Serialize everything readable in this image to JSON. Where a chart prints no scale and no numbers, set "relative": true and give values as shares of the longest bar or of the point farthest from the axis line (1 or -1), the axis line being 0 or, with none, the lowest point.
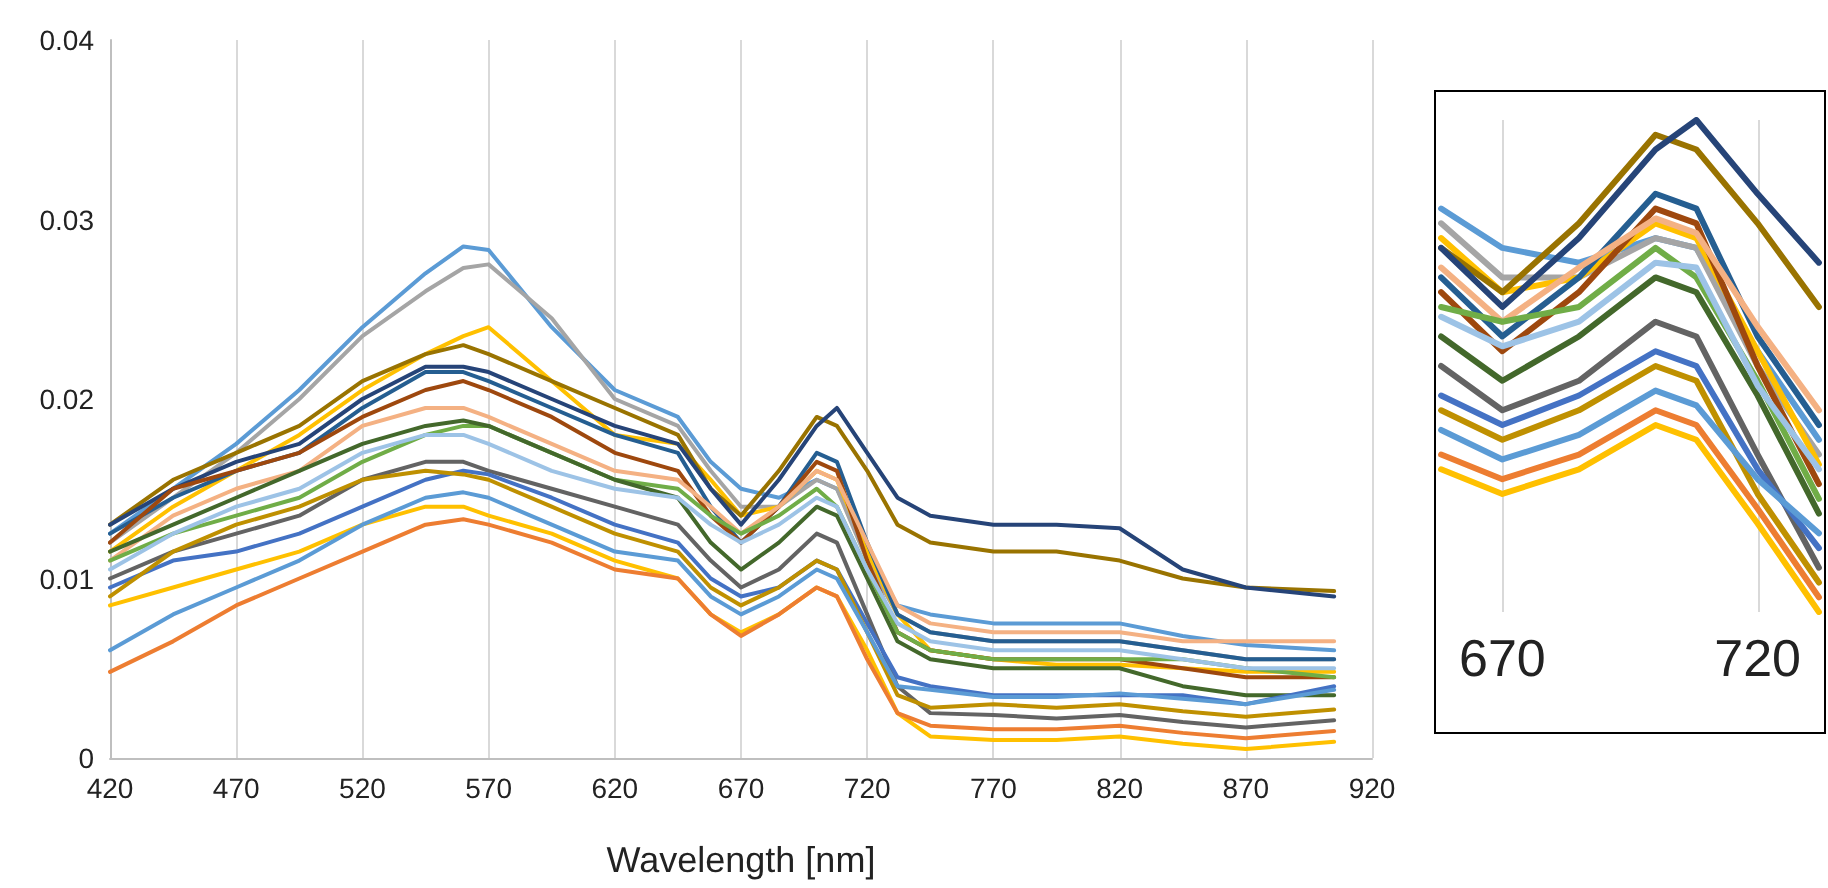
{
  "chart_data": [
    {
      "type": "line",
      "xlabel": "Wavelength [nm]",
      "x": [
        420,
        445,
        470,
        495,
        520,
        545,
        560,
        570,
        595,
        620,
        645,
        658,
        670,
        685,
        700,
        708,
        720,
        732,
        745,
        770,
        795,
        820,
        845,
        870,
        905
      ],
      "xlim": [
        420,
        920
      ],
      "xticks": [
        420,
        470,
        520,
        570,
        620,
        670,
        720,
        770,
        820,
        870,
        920
      ],
      "ylim": [
        0,
        0.04
      ],
      "yticks": [
        0,
        0.01,
        0.02,
        0.03,
        0.04
      ],
      "grid": "x",
      "marker": "none",
      "line_style": "solid",
      "series": [
        {
          "color": "#5b9bd5",
          "values": [
            0.0125,
            0.015,
            0.0175,
            0.0205,
            0.024,
            0.027,
            0.0285,
            0.0283,
            0.024,
            0.0205,
            0.019,
            0.0165,
            0.015,
            0.0145,
            0.0155,
            0.015,
            0.0115,
            0.0085,
            0.008,
            0.0075,
            0.0075,
            0.0075,
            0.0068,
            0.0063,
            0.006
          ]
        },
        {
          "color": "#a5a5a5",
          "values": [
            0.012,
            0.0145,
            0.017,
            0.02,
            0.0235,
            0.026,
            0.0273,
            0.0275,
            0.0245,
            0.02,
            0.0185,
            0.016,
            0.014,
            0.014,
            0.0155,
            0.015,
            0.011,
            0.008,
            0.007,
            0.0065,
            0.0065,
            0.0065,
            0.006,
            0.0055,
            0.0055
          ]
        },
        {
          "color": "#ffc000",
          "values": [
            0.0115,
            0.014,
            0.016,
            0.018,
            0.0205,
            0.0225,
            0.0235,
            0.024,
            0.021,
            0.018,
            0.0175,
            0.0155,
            0.0135,
            0.014,
            0.016,
            0.0155,
            0.0115,
            0.008,
            0.006,
            0.0055,
            0.0052,
            0.0052,
            0.005,
            0.0048,
            0.0048
          ]
        },
        {
          "color": "#997300",
          "values": [
            0.013,
            0.0155,
            0.017,
            0.0185,
            0.021,
            0.0225,
            0.023,
            0.0225,
            0.021,
            0.0195,
            0.018,
            0.015,
            0.0135,
            0.016,
            0.019,
            0.0185,
            0.016,
            0.013,
            0.012,
            0.0115,
            0.0115,
            0.011,
            0.01,
            0.0095,
            0.0093
          ]
        },
        {
          "color": "#264478",
          "values": [
            0.013,
            0.015,
            0.0165,
            0.0175,
            0.02,
            0.0218,
            0.0218,
            0.0215,
            0.02,
            0.0185,
            0.0175,
            0.015,
            0.013,
            0.0155,
            0.0185,
            0.0195,
            0.017,
            0.0145,
            0.0135,
            0.013,
            0.013,
            0.0128,
            0.0105,
            0.0095,
            0.009
          ]
        },
        {
          "color": "#255e91",
          "values": [
            0.0125,
            0.0145,
            0.016,
            0.017,
            0.0195,
            0.0215,
            0.0215,
            0.021,
            0.0195,
            0.018,
            0.017,
            0.014,
            0.012,
            0.014,
            0.017,
            0.0165,
            0.012,
            0.008,
            0.007,
            0.0065,
            0.0065,
            0.0065,
            0.006,
            0.0055,
            0.0055
          ]
        },
        {
          "color": "#9e480e",
          "values": [
            0.012,
            0.015,
            0.016,
            0.017,
            0.019,
            0.0205,
            0.021,
            0.0205,
            0.019,
            0.017,
            0.016,
            0.0135,
            0.012,
            0.014,
            0.0165,
            0.016,
            0.011,
            0.007,
            0.006,
            0.0055,
            0.0055,
            0.0055,
            0.005,
            0.0045,
            0.0045
          ]
        },
        {
          "color": "#f4b183",
          "values": [
            0.011,
            0.0135,
            0.015,
            0.016,
            0.0185,
            0.0195,
            0.0195,
            0.019,
            0.0175,
            0.016,
            0.0155,
            0.014,
            0.0125,
            0.014,
            0.016,
            0.0155,
            0.012,
            0.0085,
            0.0075,
            0.007,
            0.007,
            0.007,
            0.0065,
            0.0065,
            0.0065
          ]
        },
        {
          "color": "#70ad47",
          "values": [
            0.011,
            0.0125,
            0.0135,
            0.0145,
            0.0165,
            0.018,
            0.0185,
            0.0185,
            0.017,
            0.0155,
            0.015,
            0.0135,
            0.0125,
            0.0135,
            0.015,
            0.014,
            0.0105,
            0.007,
            0.006,
            0.0055,
            0.0055,
            0.0055,
            0.0055,
            0.005,
            0.0045
          ]
        },
        {
          "color": "#43682b",
          "values": [
            0.0115,
            0.013,
            0.0145,
            0.016,
            0.0175,
            0.0185,
            0.0188,
            0.0185,
            0.017,
            0.0155,
            0.0145,
            0.012,
            0.0105,
            0.012,
            0.014,
            0.0135,
            0.01,
            0.0065,
            0.0055,
            0.005,
            0.005,
            0.005,
            0.004,
            0.0035,
            0.0035
          ]
        },
        {
          "color": "#9dc3e6",
          "values": [
            0.0105,
            0.0125,
            0.014,
            0.015,
            0.017,
            0.018,
            0.018,
            0.0175,
            0.016,
            0.015,
            0.0145,
            0.013,
            0.012,
            0.013,
            0.0145,
            0.014,
            0.0105,
            0.0075,
            0.0065,
            0.006,
            0.006,
            0.006,
            0.0055,
            0.005,
            0.005
          ]
        },
        {
          "color": "#636363",
          "values": [
            0.01,
            0.0115,
            0.0125,
            0.0135,
            0.0155,
            0.0165,
            0.0165,
            0.016,
            0.015,
            0.014,
            0.013,
            0.011,
            0.0095,
            0.0105,
            0.0125,
            0.012,
            0.008,
            0.004,
            0.0025,
            0.0024,
            0.0022,
            0.0024,
            0.002,
            0.0017,
            0.0021
          ]
        },
        {
          "color": "#4472c4",
          "values": [
            0.0095,
            0.011,
            0.0115,
            0.0125,
            0.014,
            0.0155,
            0.016,
            0.0158,
            0.0145,
            0.013,
            0.012,
            0.01,
            0.009,
            0.0095,
            0.011,
            0.0105,
            0.0075,
            0.0045,
            0.004,
            0.0035,
            0.0035,
            0.0035,
            0.0035,
            0.003,
            0.004
          ]
        },
        {
          "color": "#bf9000",
          "values": [
            0.009,
            0.0115,
            0.013,
            0.014,
            0.0155,
            0.016,
            0.0158,
            0.0155,
            0.014,
            0.0125,
            0.0115,
            0.0095,
            0.0085,
            0.0095,
            0.011,
            0.0105,
            0.007,
            0.0035,
            0.0028,
            0.003,
            0.0028,
            0.003,
            0.0026,
            0.0023,
            0.0027
          ]
        },
        {
          "color": "#ffc000",
          "values": [
            0.0085,
            0.0095,
            0.0105,
            0.0115,
            0.013,
            0.014,
            0.014,
            0.0135,
            0.0125,
            0.011,
            0.01,
            0.008,
            0.007,
            0.008,
            0.0095,
            0.009,
            0.006,
            0.0025,
            0.0012,
            0.001,
            0.001,
            0.0012,
            0.0008,
            0.0005,
            0.0009
          ]
        },
        {
          "color": "#ed7d31",
          "values": [
            0.0048,
            0.0065,
            0.0085,
            0.01,
            0.0115,
            0.013,
            0.0133,
            0.013,
            0.012,
            0.0105,
            0.01,
            0.008,
            0.0068,
            0.008,
            0.0095,
            0.009,
            0.0055,
            0.0025,
            0.0018,
            0.0016,
            0.0016,
            0.0018,
            0.0014,
            0.0011,
            0.0015
          ]
        },
        {
          "color": "#5b9bd5",
          "values": [
            0.006,
            0.008,
            0.0095,
            0.011,
            0.013,
            0.0145,
            0.0148,
            0.0145,
            0.013,
            0.0115,
            0.011,
            0.009,
            0.008,
            0.009,
            0.0105,
            0.01,
            0.007,
            0.004,
            0.0038,
            0.0034,
            0.0034,
            0.0036,
            0.0033,
            0.003,
            0.0038
          ]
        }
      ]
    },
    {
      "type": "line",
      "x": [
        658,
        670,
        685,
        700,
        708,
        720,
        732
      ],
      "xlim": [
        657,
        733
      ],
      "xticks": [
        670,
        720
      ],
      "relative": true,
      "grid": "x",
      "marker": "none",
      "line_style": "solid",
      "tick_labels": "x",
      "series": [
        {
          "color": "#5b9bd5",
          "values": [
            0.82,
            0.74,
            0.71,
            0.76,
            0.74,
            0.53,
            0.35
          ]
        },
        {
          "color": "#a5a5a5",
          "values": [
            0.79,
            0.68,
            0.68,
            0.76,
            0.74,
            0.5,
            0.32
          ]
        },
        {
          "color": "#ffc000",
          "values": [
            0.76,
            0.65,
            0.68,
            0.79,
            0.76,
            0.53,
            0.3
          ]
        },
        {
          "color": "#997300",
          "values": [
            0.74,
            0.65,
            0.79,
            0.97,
            0.94,
            0.79,
            0.62
          ]
        },
        {
          "color": "#264478",
          "values": [
            0.74,
            0.62,
            0.76,
            0.94,
            1,
            0.85,
            0.71
          ]
        },
        {
          "color": "#255e91",
          "values": [
            0.68,
            0.56,
            0.68,
            0.85,
            0.82,
            0.56,
            0.38
          ]
        },
        {
          "color": "#9e480e",
          "values": [
            0.65,
            0.53,
            0.65,
            0.82,
            0.79,
            0.5,
            0.26
          ]
        },
        {
          "color": "#f4b183",
          "values": [
            0.7,
            0.59,
            0.7,
            0.8,
            0.77,
            0.58,
            0.41
          ]
        },
        {
          "color": "#70ad47",
          "values": [
            0.62,
            0.59,
            0.62,
            0.74,
            0.68,
            0.47,
            0.23
          ]
        },
        {
          "color": "#43682b",
          "values": [
            0.56,
            0.47,
            0.56,
            0.68,
            0.65,
            0.44,
            0.2
          ]
        },
        {
          "color": "#9dc3e6",
          "values": [
            0.6,
            0.54,
            0.59,
            0.71,
            0.7,
            0.46,
            0.29
          ]
        },
        {
          "color": "#636363",
          "values": [
            0.5,
            0.41,
            0.47,
            0.59,
            0.56,
            0.32,
            0.09
          ]
        },
        {
          "color": "#4472c4",
          "values": [
            0.44,
            0.38,
            0.44,
            0.53,
            0.5,
            0.29,
            0.13
          ]
        },
        {
          "color": "#bf9000",
          "values": [
            0.41,
            0.35,
            0.41,
            0.5,
            0.47,
            0.24,
            0.06
          ]
        },
        {
          "color": "#ffc000",
          "values": [
            0.29,
            0.24,
            0.29,
            0.38,
            0.35,
            0.18,
            0
          ]
        },
        {
          "color": "#ed7d31",
          "values": [
            0.32,
            0.27,
            0.32,
            0.41,
            0.38,
            0.21,
            0.03
          ]
        },
        {
          "color": "#5b9bd5",
          "values": [
            0.37,
            0.31,
            0.36,
            0.45,
            0.42,
            0.27,
            0.16
          ]
        }
      ]
    }
  ]
}
